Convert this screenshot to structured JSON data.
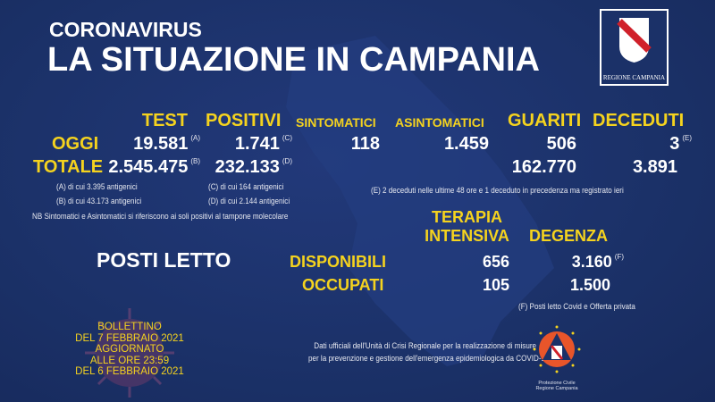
{
  "header": {
    "kicker": "CORONAVIRUS",
    "title": "LA SITUAZIONE IN CAMPANIA",
    "logo_text": "REGIONE CAMPANIA"
  },
  "columns": {
    "test": "TEST",
    "positivi": "POSITIVI",
    "sintomatici": "SINTOMATICI",
    "asintomatici": "ASINTOMATICI",
    "guariti": "GUARITI",
    "deceduti": "DECEDUTI"
  },
  "oggi": {
    "label": "OGGI",
    "test": "19.581",
    "test_ref": "(A)",
    "positivi": "1.741",
    "positivi_ref": "(C)",
    "sintomatici": "118",
    "asintomatici": "1.459",
    "guariti": "506",
    "deceduti": "3",
    "deceduti_ref": "(E)"
  },
  "totale": {
    "label": "TOTALE",
    "test": "2.545.475",
    "test_ref": "(B)",
    "positivi": "232.133",
    "positivi_ref": "(D)",
    "guariti": "162.770",
    "deceduti": "3.891"
  },
  "notes": {
    "a": "(A) di cui 3.395 antigenici",
    "b": "(B) di cui 43.173 antigenici",
    "c": "(C) di cui 164 antigenici",
    "d": "(D) di cui 2.144 antigenici",
    "nb": "NB Sintomatici e Asintomatici si riferiscono ai soli positivi al tampone molecolare",
    "e": "(E) 2 deceduti nelle ultime 48 ore e 1 deceduto in precedenza ma registrato ieri",
    "f": "(F) Posti letto Covid e Offerta privata"
  },
  "beds": {
    "title": "POSTI LETTO",
    "ti_line1": "TERAPIA",
    "ti_line2": "INTENSIVA",
    "degenza": "DEGENZA",
    "disponibili": {
      "label": "DISPONIBILI",
      "ti": "656",
      "degenza": "3.160",
      "degenza_ref": "(F)"
    },
    "occupati": {
      "label": "OCCUPATI",
      "ti": "105",
      "degenza": "1.500"
    }
  },
  "bulletin": [
    "BOLLETTINO",
    "DEL 7 FEBBRAIO 2021",
    "AGGIORNATO",
    "ALLE ORE 23:59",
    "DEL 6 FEBBRAIO 2021"
  ],
  "footer": {
    "line1": "Dati ufficiali dell'Unità di Crisi Regionale per la realizzazione di misure",
    "line2": "per la prevenzione e gestione dell'emergenza epidemiologica da COVID-19",
    "pc_line1": "Protezione Civile",
    "pc_line2": "Regione Campania"
  },
  "colors": {
    "background": "#1b3168",
    "accent": "#f5d31e",
    "map": "#243d80"
  }
}
